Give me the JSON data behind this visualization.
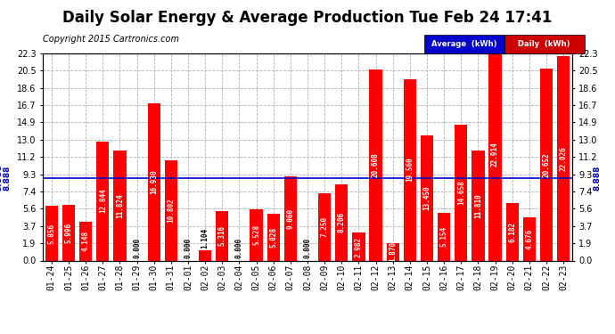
{
  "title": "Daily Solar Energy & Average Production Tue Feb 24 17:41",
  "copyright": "Copyright 2015 Cartronics.com",
  "categories": [
    "01-24",
    "01-25",
    "01-26",
    "01-27",
    "01-28",
    "01-29",
    "01-30",
    "01-31",
    "02-01",
    "02-02",
    "02-03",
    "02-04",
    "02-05",
    "02-06",
    "02-07",
    "02-08",
    "02-09",
    "02-10",
    "02-11",
    "02-12",
    "02-13",
    "02-14",
    "02-15",
    "02-16",
    "02-17",
    "02-18",
    "02-19",
    "02-20",
    "02-21",
    "02-22",
    "02-23"
  ],
  "values": [
    5.856,
    5.996,
    4.148,
    12.844,
    11.824,
    0.0,
    16.93,
    10.802,
    0.0,
    1.104,
    5.316,
    0.0,
    5.528,
    5.028,
    9.06,
    0.0,
    7.25,
    8.206,
    2.982,
    20.608,
    1.87,
    19.56,
    13.45,
    5.154,
    14.658,
    11.81,
    22.914,
    6.182,
    4.676,
    20.652,
    22.026
  ],
  "average_line": 8.888,
  "ylim": [
    0,
    22.3
  ],
  "yticks": [
    0.0,
    1.9,
    3.7,
    5.6,
    7.4,
    9.3,
    11.2,
    13.0,
    14.9,
    16.7,
    18.6,
    20.5,
    22.3
  ],
  "bar_color": "#ff0000",
  "avg_line_color": "#0000cc",
  "background_color": "#ffffff",
  "grid_color": "#b0b0b0",
  "title_fontsize": 12,
  "copyright_fontsize": 7,
  "bar_label_fontsize": 5.5,
  "tick_fontsize": 7,
  "legend_avg_bg": "#0000cc",
  "legend_daily_bg": "#cc0000",
  "legend_text_color": "#ffffff"
}
